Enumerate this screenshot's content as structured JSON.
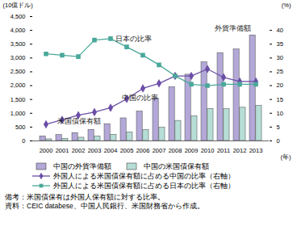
{
  "chart_data": {
    "type": "bar",
    "categories": [
      "2000",
      "2001",
      "2002",
      "2003",
      "2004",
      "2005",
      "2006",
      "2007",
      "2008",
      "2009",
      "2010",
      "2011",
      "2012",
      "2013"
    ],
    "x_label": "(年)",
    "y_label": "(10億ドル)",
    "y2_label": "(%)",
    "ylim": [
      0,
      4500
    ],
    "yticks": [
      0,
      500,
      {
        "value": 1000,
        "label": "1,000"
      },
      {
        "value": 1500,
        "label": "1,500"
      },
      {
        "value": 2000,
        "label": "2,000"
      },
      {
        "value": 2500,
        "label": "2,500"
      },
      {
        "value": 3000,
        "label": "3,000"
      },
      {
        "value": 3500,
        "label": "3,500"
      },
      {
        "value": 4000,
        "label": "4,000"
      },
      {
        "value": 4500,
        "label": "4,500"
      }
    ],
    "y2lim": [
      0,
      45
    ],
    "y2ticks": [
      0,
      5,
      10,
      15,
      20,
      25,
      30,
      35,
      40
    ],
    "grid": false,
    "series": [
      {
        "name": "中国の外貨準備額",
        "type": "bar",
        "color": "#b3a8d8",
        "values": [
          166,
          212,
          286,
          403,
          610,
          819,
          1066,
          1528,
          1946,
          2399,
          2847,
          3181,
          3312,
          3821
        ]
      },
      {
        "name": "中国の米国債保有額",
        "type": "bar",
        "color": "#b6ddd6",
        "values": [
          60,
          79,
          118,
          159,
          223,
          310,
          397,
          478,
          727,
          895,
          1160,
          1151,
          1203,
          1270
        ]
      },
      {
        "name": "外国人による米国債保有額に占める中国の比率（右軸）",
        "type": "line",
        "axis": "y2",
        "color": "#6b4fa6",
        "marker": "diamond",
        "values": [
          6,
          7.6,
          9.3,
          10.4,
          12,
          15.2,
          19,
          20.8,
          23.5,
          23.5,
          26,
          23,
          21.5,
          21.5
        ]
      },
      {
        "name": "外国人による米国債保有額に占める日本の比率（右軸）",
        "type": "line",
        "axis": "y2",
        "color": "#4aa89a",
        "marker": "square",
        "values": [
          31.5,
          31,
          30.5,
          36.5,
          37,
          34,
          31,
          27.5,
          23.5,
          20.5,
          20,
          20.5,
          20.5,
          20.5
        ]
      }
    ],
    "annotations": [
      "日本の比率",
      "中国の比率",
      "外貨準備額",
      "米国債保有額"
    ],
    "notes": [
      "備考：米国債保有は外国人保有額に対する比率。",
      "資料：CEIC databese、中国人民銀行、米国財務省から作成。"
    ]
  }
}
